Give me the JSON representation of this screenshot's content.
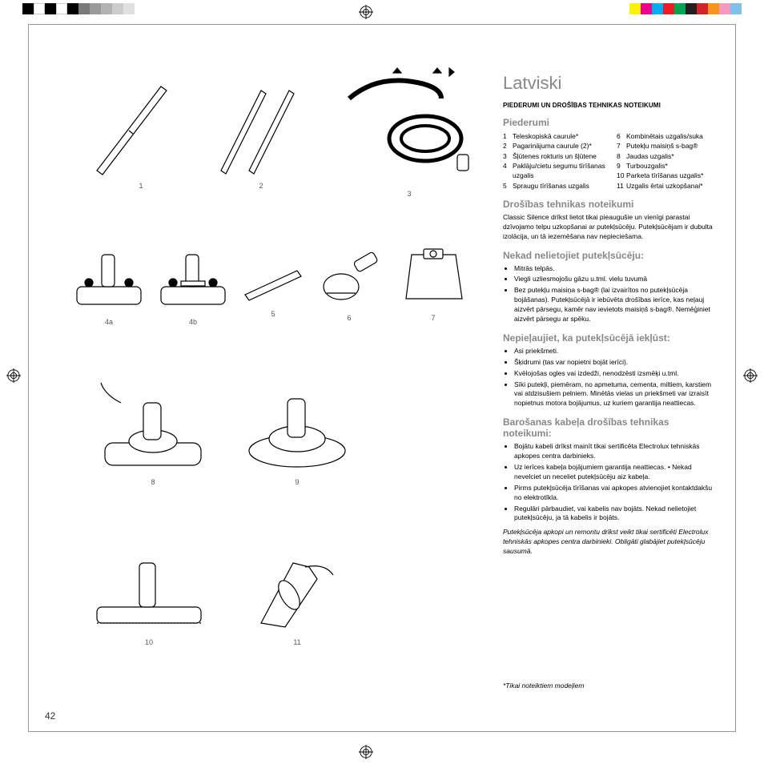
{
  "colorbar_left": [
    "#000000",
    "#ffffff",
    "#000000",
    "#ffffff",
    "#000000",
    "#7a7a7a",
    "#999999",
    "#b3b3b3",
    "#cccccc",
    "#e0e0e0"
  ],
  "colorbar_right": [
    "#fff200",
    "#ec008c",
    "#00aeef",
    "#ed1c24",
    "#00a651",
    "#231f20",
    "#d2232a",
    "#f7941e",
    "#f49ac1",
    "#7ec0ee"
  ],
  "page_number": "42",
  "lang_title": "Latviski",
  "subheader": "PIEDERUMI UN DROŠĪBAS TEHNIKAS NOTEIKUMI",
  "sec_accessories": "Piederumi",
  "accessories_colA": [
    {
      "n": "1",
      "t": "Teleskopiskā caurule*"
    },
    {
      "n": "2",
      "t": "Pagarinājuma caurule (2)*"
    },
    {
      "n": "3",
      "t": "Šļūtenes rokturis un šļūtene"
    },
    {
      "n": "4",
      "t": "Paklāju/cietu segumu tīrīšanas uzgalis"
    },
    {
      "n": "5",
      "t": "Spraugu tīrīšanas uzgalis"
    }
  ],
  "accessories_colB": [
    {
      "n": "6",
      "t": "Kombinētais uzgalis/suka"
    },
    {
      "n": "7",
      "t": "Putekļu maisiņš s-bag®"
    },
    {
      "n": "8",
      "t": "Jaudas uzgalis*"
    },
    {
      "n": "9",
      "t": "Turbouzgalis*"
    },
    {
      "n": "10",
      "t": "Parketa tīrīšanas uzgalis*"
    },
    {
      "n": "11",
      "t": "Uzgalis ērtai uzkopšanai*"
    }
  ],
  "sec_safety": "Drošības tehnikas noteikumi",
  "safety_para": "Classic Silence drīkst lietot tikai pieaugušie un vienīgi parastai dzīvojamo telpu uzkopšanai ar putekļsūcēju. Putekļsūcējam ir dubulta izolācija, un tā iezemēšana nav nepieciešama.",
  "sec_never": "Nekad nelietojiet putekļsūcēju:",
  "never_items": [
    "Mitrās telpās.",
    "Viegli uzliesmojošu gāzu u.tml. vielu tuvumā",
    "Bez putekļu maisiņa s-bag® (lai izvairītos no putekļsūcēja bojāšanas). Putekļsūcējā ir iebūvēta drošības ierīce, kas neļauj aizvērt pārsegu, kamēr nav ievietots maisiņš s-bag®. Nemēģiniet aizvērt pārsegu ar spēku."
  ],
  "sec_avoid": "Nepieļaujiet, ka putekļsūcējā iekļūst:",
  "avoid_items": [
    "Asi priekšmeti.",
    "Šķidrumi (tas var nopietni bojāt ierīci).",
    "Kvēlojošas ogles vai izdedži, nenodzēsti izsmēķi u.tml.",
    "Sīki putekļi, piemēram, no apmetuma, cementa, miltiem, karstiem vai atdzisušiem pelniem. Minētās vielas un priekšmeti var izraisīt nopietnus motora bojājumus, uz kuriem garantija neattiecas."
  ],
  "sec_cable": "Barošanas kabeļa drošības tehnikas noteikumi:",
  "cable_items": [
    "Bojātu kabeli drīkst mainīt tikai sertificēta Electrolux tehniskās apkopes centra darbinieks.",
    "Uz ierīces kabeļa bojājumiem garantija neattiecas. • Nekad nevelciet un neceliet putekļsūcēju aiz kabeļa.",
    "Pirms putekļsūcēja tīrīšanas vai apkopes atvienojiet kontaktdakšu no elektrotīkla.",
    "Regulāri pārbaudiet, vai kabelis nav bojāts. Nekad nelietojiet putekļsūcēju, ja tā kabelis ir bojāts."
  ],
  "footnote_main": "Putekļsūcēja apkopi un remontu drīkst veikt tikai sertificēti Electrolux tehniskās apkopes centra darbinieki. Obligāti glabājiet putekļsūcēju sausumā.",
  "footnote_models": "*Tikai noteiktiem modeļiem",
  "figs": {
    "f1": "1",
    "f2": "2",
    "f3": "3",
    "f4a": "4a",
    "f4b": "4b",
    "f5": "5",
    "f6": "6",
    "f7": "7",
    "f8": "8",
    "f9": "9",
    "f10": "10",
    "f11": "11"
  }
}
